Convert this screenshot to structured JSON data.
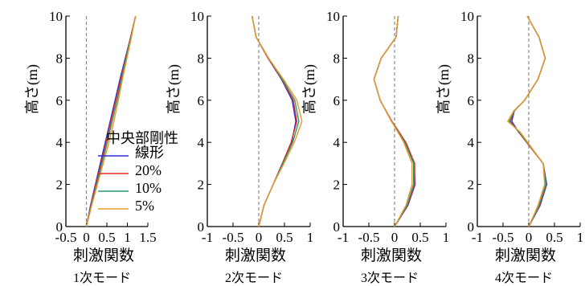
{
  "colors": {
    "linear": "#2e2ed6",
    "p20": "#e02a2a",
    "p10": "#2a9a6e",
    "p5": "#e89a2a",
    "axis": "#000000",
    "zero_line": "#888888"
  },
  "legend": {
    "title": "中央部剛性",
    "items": [
      "線形",
      "20%",
      "10%",
      "5%"
    ]
  },
  "chart_data": [
    {
      "type": "line",
      "xlabel": "刺激関数",
      "ylabel": "高さ(m)",
      "caption": "1次モード",
      "xlim": [
        -0.5,
        1.5
      ],
      "ylim": [
        0,
        10
      ],
      "xticks": [
        "-0.5",
        "0",
        "0.5",
        "1",
        "1.5"
      ],
      "yticks": [
        "0",
        "2",
        "4",
        "6",
        "8",
        "10"
      ],
      "y": [
        0,
        1,
        2,
        3,
        4,
        5,
        6,
        7,
        8,
        9,
        10
      ],
      "series": [
        {
          "name": "線形",
          "color_key": "linear",
          "x": [
            0,
            0.1,
            0.22,
            0.34,
            0.46,
            0.58,
            0.7,
            0.82,
            0.95,
            1.08,
            1.2
          ]
        },
        {
          "name": "20%",
          "color_key": "p20",
          "x": [
            0,
            0.11,
            0.23,
            0.36,
            0.48,
            0.6,
            0.72,
            0.84,
            0.96,
            1.08,
            1.2
          ]
        },
        {
          "name": "10%",
          "color_key": "p10",
          "x": [
            0,
            0.12,
            0.25,
            0.38,
            0.51,
            0.63,
            0.75,
            0.86,
            0.97,
            1.09,
            1.2
          ]
        },
        {
          "name": "5%",
          "color_key": "p5",
          "x": [
            0,
            0.13,
            0.27,
            0.41,
            0.55,
            0.67,
            0.78,
            0.88,
            0.99,
            1.1,
            1.2
          ]
        }
      ]
    },
    {
      "type": "line",
      "xlabel": "刺激関数",
      "ylabel": "高さ(m)",
      "caption": "2次モード",
      "xlim": [
        -1,
        1
      ],
      "ylim": [
        0,
        10
      ],
      "xticks": [
        "-1",
        "-0.5",
        "0",
        "0.5",
        "1"
      ],
      "yticks": [
        "0",
        "2",
        "4",
        "6",
        "8",
        "10"
      ],
      "y": [
        0,
        1,
        2,
        3,
        4,
        5,
        6,
        7,
        8,
        9,
        10
      ],
      "series": [
        {
          "name": "線形",
          "color_key": "linear",
          "x": [
            0,
            0.1,
            0.28,
            0.46,
            0.64,
            0.72,
            0.65,
            0.44,
            0.18,
            -0.05,
            -0.13
          ]
        },
        {
          "name": "20%",
          "color_key": "p20",
          "x": [
            0,
            0.1,
            0.28,
            0.46,
            0.63,
            0.74,
            0.67,
            0.45,
            0.18,
            -0.05,
            -0.13
          ]
        },
        {
          "name": "10%",
          "color_key": "p10",
          "x": [
            0,
            0.1,
            0.28,
            0.47,
            0.66,
            0.78,
            0.7,
            0.46,
            0.19,
            -0.05,
            -0.13
          ]
        },
        {
          "name": "5%",
          "color_key": "p5",
          "x": [
            0,
            0.1,
            0.28,
            0.49,
            0.69,
            0.84,
            0.74,
            0.48,
            0.19,
            -0.05,
            -0.13
          ]
        }
      ]
    },
    {
      "type": "line",
      "xlabel": "刺激関数",
      "ylabel": "高さ(m)",
      "caption": "3次モード",
      "xlim": [
        -1,
        1
      ],
      "ylim": [
        0,
        10
      ],
      "xticks": [
        "-1",
        "-0.5",
        "0",
        "0.5",
        "1"
      ],
      "yticks": [
        "0",
        "2",
        "4",
        "6",
        "8",
        "10"
      ],
      "y": [
        0,
        1,
        2,
        3,
        4,
        5,
        6,
        7,
        8,
        9,
        10
      ],
      "series": [
        {
          "name": "線形",
          "color_key": "linear",
          "x": [
            0,
            0.26,
            0.4,
            0.38,
            0.2,
            -0.06,
            -0.28,
            -0.4,
            -0.26,
            0.03,
            0.07
          ]
        },
        {
          "name": "20%",
          "color_key": "p20",
          "x": [
            0,
            0.25,
            0.39,
            0.39,
            0.22,
            -0.05,
            -0.28,
            -0.4,
            -0.26,
            0.03,
            0.07
          ]
        },
        {
          "name": "10%",
          "color_key": "p10",
          "x": [
            0,
            0.24,
            0.37,
            0.37,
            0.2,
            -0.06,
            -0.28,
            -0.4,
            -0.26,
            0.03,
            0.07
          ]
        },
        {
          "name": "5%",
          "color_key": "p5",
          "x": [
            0,
            0.22,
            0.34,
            0.34,
            0.18,
            -0.06,
            -0.28,
            -0.4,
            -0.26,
            0.03,
            0.07
          ]
        }
      ]
    },
    {
      "type": "line",
      "xlabel": "刺激関数",
      "ylabel": "高さ(m)",
      "caption": "4次モード",
      "xlim": [
        -1,
        1
      ],
      "ylim": [
        0,
        10
      ],
      "xticks": [
        "-1",
        "-0.5",
        "0",
        "0.5",
        "1"
      ],
      "yticks": [
        "0",
        "2",
        "4",
        "6",
        "8",
        "10"
      ],
      "y": [
        0,
        1,
        2,
        3,
        4,
        4.5,
        5,
        5.5,
        6,
        7,
        8,
        9,
        10
      ],
      "series": [
        {
          "name": "線形",
          "color_key": "linear",
          "x": [
            0,
            0.22,
            0.35,
            0.28,
            -0.04,
            -0.2,
            -0.33,
            -0.28,
            -0.08,
            0.18,
            0.32,
            0.2,
            -0.03
          ]
        },
        {
          "name": "20%",
          "color_key": "p20",
          "x": [
            0,
            0.21,
            0.34,
            0.28,
            -0.04,
            -0.2,
            -0.36,
            -0.28,
            -0.08,
            0.18,
            0.32,
            0.2,
            -0.03
          ]
        },
        {
          "name": "10%",
          "color_key": "p10",
          "x": [
            0,
            0.2,
            0.33,
            0.28,
            -0.03,
            -0.19,
            -0.38,
            -0.28,
            -0.08,
            0.18,
            0.32,
            0.2,
            -0.03
          ]
        },
        {
          "name": "5%",
          "color_key": "p5",
          "x": [
            0,
            0.18,
            0.31,
            0.28,
            -0.02,
            -0.17,
            -0.41,
            -0.29,
            -0.08,
            0.18,
            0.32,
            0.2,
            -0.03
          ]
        }
      ]
    }
  ]
}
